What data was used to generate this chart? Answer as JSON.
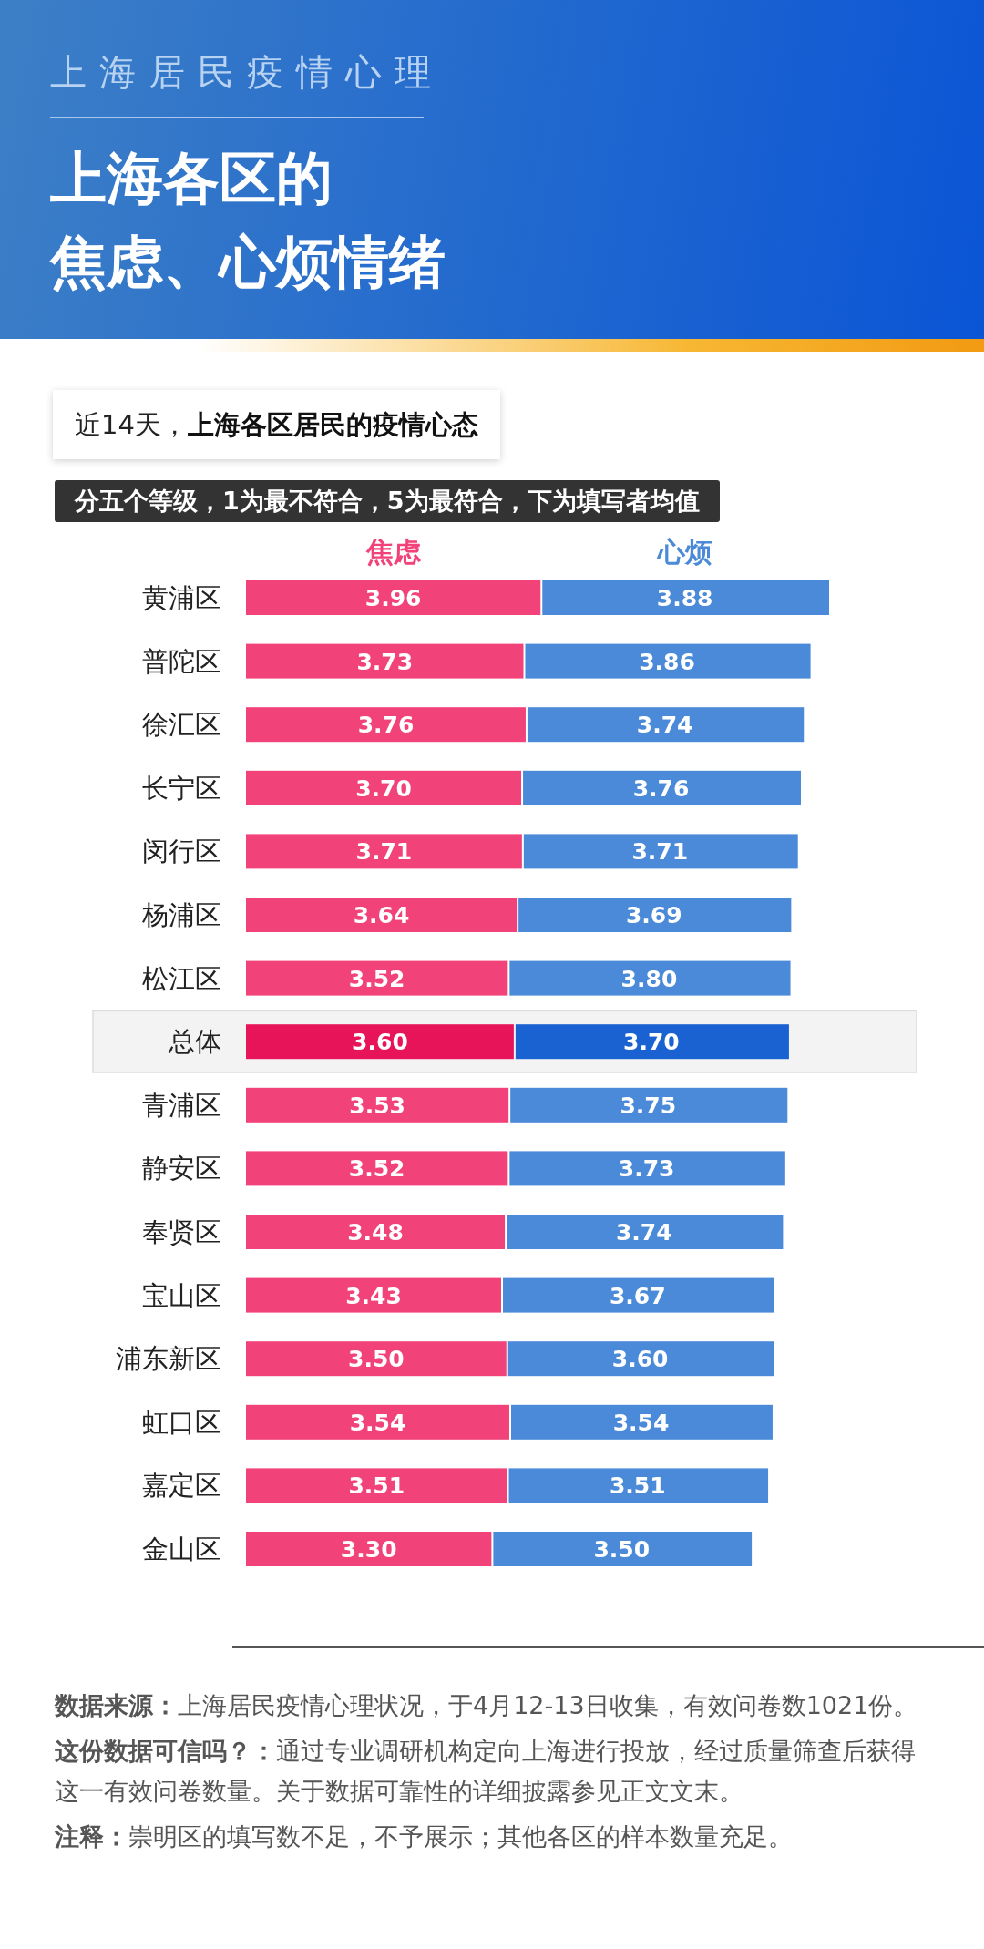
{
  "chart_data": {
    "type": "bar",
    "orientation": "horizontal",
    "stacked": true,
    "legend": "top",
    "title": "上海各区的焦虑、心烦情绪",
    "subtitle": "近14天，上海各区居民的疫情心态",
    "categories": [
      "黄浦区",
      "普陀区",
      "徐汇区",
      "长宁区",
      "闵行区",
      "杨浦区",
      "松江区",
      "总体",
      "青浦区",
      "静安区",
      "奉贤区",
      "宝山区",
      "浦东新区",
      "虹口区",
      "嘉定区",
      "金山区"
    ],
    "series": [
      {
        "name": "焦虑",
        "color": "#f2427a",
        "colors": [
          "#f2427a",
          "#f2427a",
          "#f2427a",
          "#f2427a",
          "#f2427a",
          "#f2427a",
          "#f2427a",
          "#e8145a",
          "#f2427a",
          "#f2427a",
          "#f2427a",
          "#f2427a",
          "#f2427a",
          "#f2427a",
          "#f2427a",
          "#f2427a"
        ],
        "values": [
          3.96,
          3.73,
          3.76,
          3.7,
          3.71,
          3.64,
          3.52,
          3.6,
          3.53,
          3.52,
          3.48,
          3.43,
          3.5,
          3.54,
          3.51,
          3.3
        ],
        "value_labels": [
          "3.96",
          "3.73",
          "3.76",
          "3.70",
          "3.71",
          "3.64",
          "3.52",
          "3.60",
          "3.53",
          "3.52",
          "3.48",
          "3.43",
          "3.50",
          "3.54",
          "3.51",
          "3.30"
        ]
      },
      {
        "name": "心烦",
        "color": "#4a8ad8",
        "colors": [
          "#4a8ad8",
          "#4a8ad8",
          "#4a8ad8",
          "#4a8ad8",
          "#4a8ad8",
          "#4a8ad8",
          "#4a8ad8",
          "#1a62d2",
          "#4a8ad8",
          "#4a8ad8",
          "#4a8ad8",
          "#4a8ad8",
          "#4a8ad8",
          "#4a8ad8",
          "#4a8ad8",
          "#4a8ad8"
        ],
        "values": [
          3.88,
          3.86,
          3.74,
          3.76,
          3.71,
          3.69,
          3.8,
          3.7,
          3.75,
          3.73,
          3.74,
          3.67,
          3.6,
          3.54,
          3.51,
          3.5
        ],
        "value_labels": [
          "3.88",
          "3.86",
          "3.74",
          "3.76",
          "3.71",
          "3.69",
          "3.80",
          "3.70",
          "3.75",
          "3.73",
          "3.74",
          "3.67",
          "3.60",
          "3.54",
          "3.51",
          "3.50"
        ]
      }
    ],
    "bands": [
      {
        "axis": "y",
        "from": "总体",
        "to": "总体",
        "color": "#f3f3f3"
      }
    ],
    "annotations": [
      "上海居民疫情心理",
      "分五个等级，1为最不符合，5为最符合，下为填写者均值",
      "数据来源：上海居民疫情心理状况，于4月12-13日收集，有效问卷数1021份。",
      "这份数据可信吗？：通过专业调研机构定向上海进行投放，经过质量筛查后获得这一有效问卷数量。关于数据可靠性的详细披露参见正文文末。",
      "注释：崇明区的填写数不足，不予展示；其他各区的样本数量充足。"
    ]
  }
}
